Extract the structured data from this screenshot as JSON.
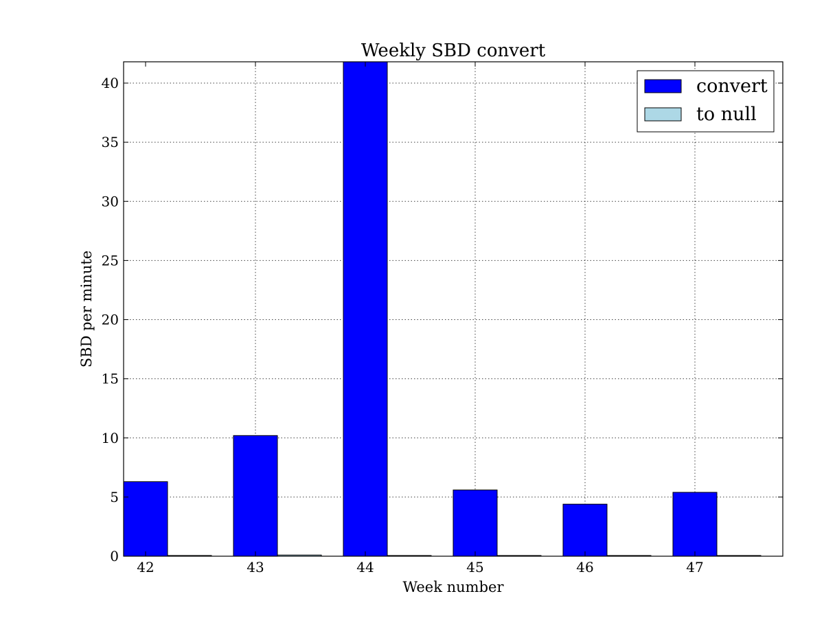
{
  "chart_data": {
    "type": "bar",
    "title": "Weekly SBD convert",
    "xlabel": "Week number",
    "ylabel": "SBD per minute",
    "categories": [
      "42",
      "43",
      "44",
      "45",
      "46",
      "47"
    ],
    "yticks": [
      "0",
      "5",
      "10",
      "15",
      "20",
      "25",
      "30",
      "35",
      "40"
    ],
    "ylim": [
      0,
      41.8
    ],
    "grid": true,
    "legend_position": "top-right",
    "series": [
      {
        "name": "convert",
        "color": "#0000ff",
        "values": [
          6.3,
          10.2,
          42.0,
          5.6,
          4.4,
          5.4
        ]
      },
      {
        "name": "to null",
        "color": "#add8e6",
        "values": [
          0.06,
          0.1,
          0.05,
          0.02,
          0.01,
          0.01
        ]
      }
    ]
  }
}
